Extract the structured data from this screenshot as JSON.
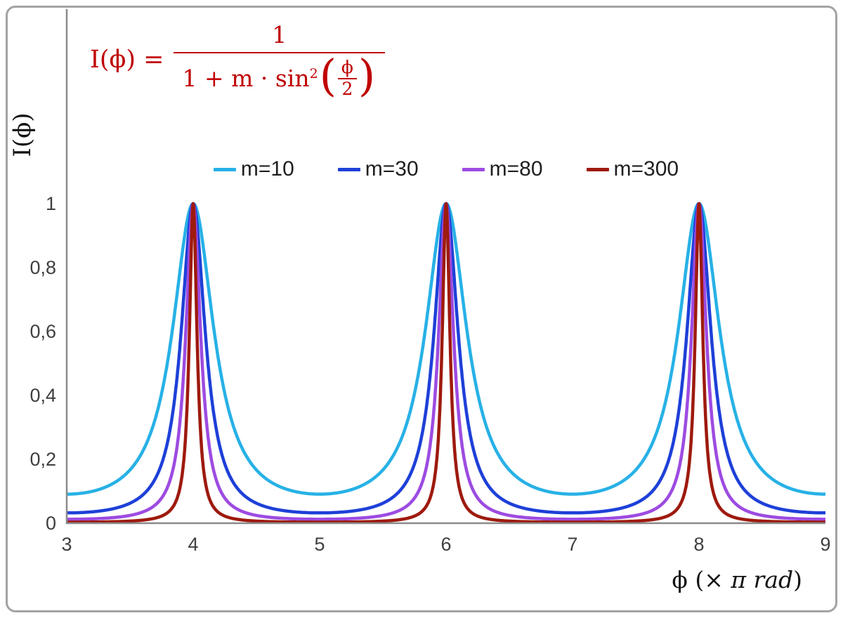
{
  "chart": {
    "formula": {
      "lhs": "I(ϕ) =",
      "numerator": "1",
      "den_prefix": "1 + m · sin",
      "den_sup": "2",
      "inner_num": "ϕ",
      "inner_den": "2",
      "color": "#c00000"
    },
    "border_color": "#a3a3a3",
    "axis_color": "#8a8a8a",
    "tick_text_color": "#3f3f3f",
    "background": "#ffffff"
  },
  "chart_data": {
    "type": "line",
    "title": "",
    "function": "I(phi) = 1 / (1 + m * sin^2(phi/2)), x axis in units of pi rad",
    "formula_text": "I(ϕ) = 1 / (1 + m·sin²(ϕ/2))",
    "xlabel": "ϕ (× π rad)",
    "xlabel_parts": [
      "ϕ  (× ",
      "π rad",
      ")"
    ],
    "ylabel": "I(ϕ)",
    "xlim": [
      3,
      9
    ],
    "ylim": [
      0,
      1
    ],
    "grid": false,
    "legend_position": "top-center",
    "peaks_at_x": [
      4,
      6,
      8
    ],
    "peak_value": 1,
    "x_ticks": [
      {
        "v": 3,
        "label": "3"
      },
      {
        "v": 4,
        "label": "4"
      },
      {
        "v": 5,
        "label": "5"
      },
      {
        "v": 6,
        "label": "6"
      },
      {
        "v": 7,
        "label": "7"
      },
      {
        "v": 8,
        "label": "8"
      },
      {
        "v": 9,
        "label": "9"
      }
    ],
    "y_ticks": [
      {
        "v": 0,
        "label": "0"
      },
      {
        "v": 0.2,
        "label": "0,2"
      },
      {
        "v": 0.4,
        "label": "0,4"
      },
      {
        "v": 0.6,
        "label": "0,6"
      },
      {
        "v": 0.8,
        "label": "0,8"
      },
      {
        "v": 1,
        "label": "1"
      }
    ],
    "series": [
      {
        "name": "m=10",
        "m": 10,
        "color": "#27b1e6"
      },
      {
        "name": "m=30",
        "m": 30,
        "color": "#1e40d8"
      },
      {
        "name": "m=80",
        "m": 80,
        "color": "#9d4be1"
      },
      {
        "name": "m=300",
        "m": 300,
        "color": "#9e1a0e"
      }
    ]
  }
}
